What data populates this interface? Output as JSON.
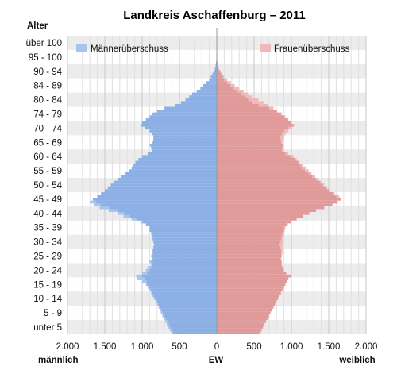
{
  "chart_data": {
    "type": "population_pyramid",
    "title": "Landkreis Aschaffenburg – 2011",
    "ylabel": "Alter",
    "xlabel": "EW",
    "left_label": "männlich",
    "right_label": "weiblich",
    "xlim": [
      -2000,
      2000
    ],
    "x_ticks": [
      {
        "value": -2000,
        "label": "2.000"
      },
      {
        "value": -1500,
        "label": "1.500"
      },
      {
        "value": -1000,
        "label": "1.000"
      },
      {
        "value": -500,
        "label": "500"
      },
      {
        "value": 0,
        "label": "0"
      },
      {
        "value": 500,
        "label": "500"
      },
      {
        "value": 1000,
        "label": "1.000"
      },
      {
        "value": 1500,
        "label": "1.500"
      },
      {
        "value": 2000,
        "label": "2.000"
      }
    ],
    "age_groups": [
      "unter 5",
      "5 - 9",
      "10 - 14",
      "15 - 19",
      "20 - 24",
      "25 - 29",
      "30 - 34",
      "35 - 39",
      "40 - 44",
      "45 - 49",
      "50 - 54",
      "55 - 59",
      "60 - 64",
      "65 - 69",
      "70 - 74",
      "74 - 79",
      "80 - 84",
      "84 - 89",
      "90 - 94",
      "95 - 100",
      "über 100"
    ],
    "legend": [
      {
        "name": "Männerüberschuss",
        "color": "#a9c4ec",
        "position": "top-left"
      },
      {
        "name": "Frauenüberschuss",
        "color": "#efb9b9",
        "position": "top-right"
      }
    ],
    "colors": {
      "male": "#8cb0e6",
      "female": "#e09a9a",
      "male_excess": "#a9c4ec",
      "female_excess": "#efb9b9",
      "band": "#ececec"
    },
    "single_year_ages": {
      "age_range": [
        0,
        100
      ],
      "male": [
        610,
        630,
        650,
        670,
        690,
        710,
        730,
        750,
        760,
        780,
        800,
        820,
        840,
        860,
        880,
        900,
        920,
        950,
        1000,
        1070,
        1080,
        1000,
        950,
        920,
        880,
        900,
        860,
        880,
        860,
        860,
        850,
        840,
        850,
        860,
        870,
        880,
        900,
        900,
        950,
        1020,
        1140,
        1250,
        1330,
        1450,
        1570,
        1640,
        1700,
        1660,
        1600,
        1550,
        1500,
        1460,
        1420,
        1380,
        1330,
        1280,
        1230,
        1180,
        1140,
        1120,
        1090,
        1050,
        1000,
        920,
        870,
        880,
        900,
        860,
        850,
        850,
        870,
        900,
        960,
        1020,
        1000,
        950,
        900,
        860,
        800,
        700,
        560,
        480,
        420,
        370,
        330,
        270,
        220,
        180,
        140,
        100,
        80,
        60,
        40,
        25,
        15,
        10,
        6,
        4,
        2,
        1,
        0
      ],
      "female": [
        580,
        600,
        620,
        640,
        660,
        680,
        700,
        720,
        740,
        760,
        780,
        800,
        820,
        840,
        860,
        880,
        900,
        920,
        940,
        960,
        1000,
        930,
        900,
        880,
        870,
        870,
        860,
        870,
        880,
        880,
        880,
        880,
        890,
        890,
        900,
        900,
        910,
        920,
        950,
        990,
        1070,
        1160,
        1240,
        1330,
        1440,
        1550,
        1620,
        1660,
        1640,
        1580,
        1520,
        1480,
        1440,
        1400,
        1360,
        1320,
        1270,
        1230,
        1190,
        1150,
        1110,
        1070,
        1030,
        960,
        900,
        880,
        890,
        880,
        890,
        900,
        920,
        960,
        1010,
        1040,
        1000,
        960,
        920,
        870,
        810,
        760,
        690,
        630,
        560,
        480,
        420,
        360,
        300,
        240,
        190,
        140,
        100,
        70,
        50,
        30,
        20,
        10,
        6,
        4,
        2,
        1,
        0
      ]
    }
  }
}
